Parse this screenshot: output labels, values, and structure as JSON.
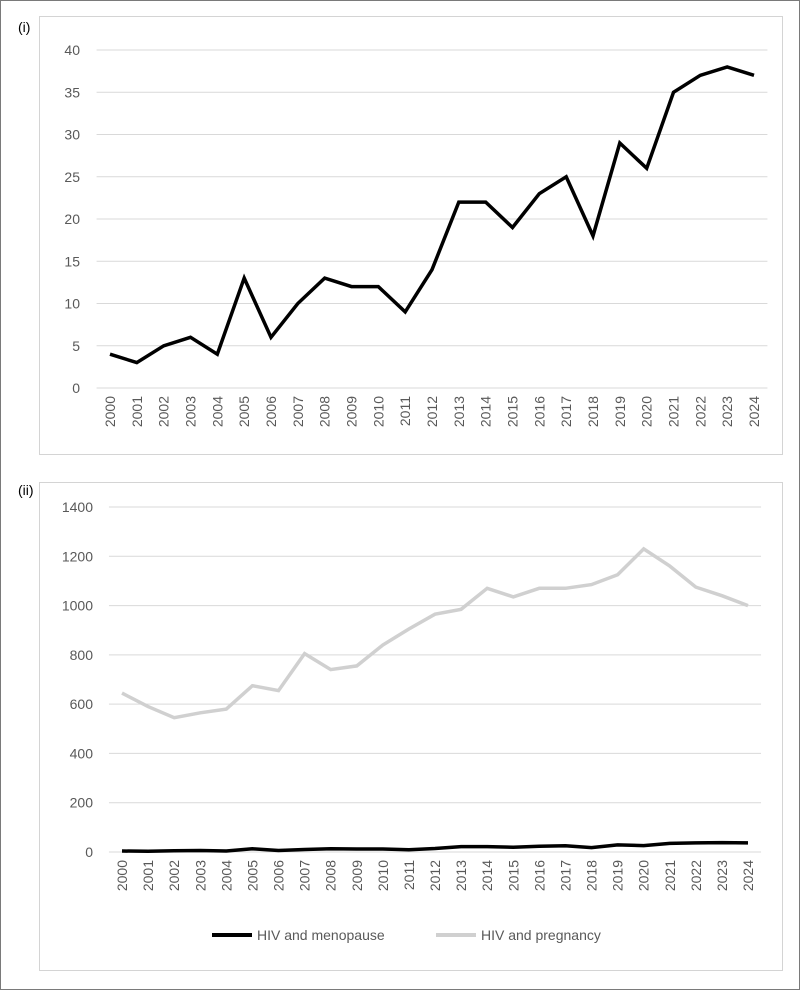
{
  "panels": [
    {
      "label": "(i)"
    },
    {
      "label": "(ii)"
    }
  ],
  "chart_data": [
    {
      "type": "line",
      "title": "",
      "xlabel": "",
      "ylabel": "",
      "categories": [
        "2000",
        "2001",
        "2002",
        "2003",
        "2004",
        "2005",
        "2006",
        "2007",
        "2008",
        "2009",
        "2010",
        "2011",
        "2012",
        "2013",
        "2014",
        "2015",
        "2016",
        "2017",
        "2018",
        "2019",
        "2020",
        "2021",
        "2022",
        "2023",
        "2024"
      ],
      "yticks": [
        0,
        5,
        10,
        15,
        20,
        25,
        30,
        35,
        40
      ],
      "ylim": [
        0,
        40
      ],
      "grid": true,
      "legend": "none",
      "series": [
        {
          "name": "",
          "color": "#000000",
          "values": [
            4,
            3,
            5,
            6,
            4,
            13,
            6,
            10,
            13,
            12,
            12,
            9,
            14,
            22,
            22,
            19,
            23,
            25,
            18,
            29,
            26,
            35,
            37,
            38,
            37
          ]
        }
      ]
    },
    {
      "type": "line",
      "title": "",
      "xlabel": "",
      "ylabel": "",
      "categories": [
        "2000",
        "2001",
        "2002",
        "2003",
        "2004",
        "2005",
        "2006",
        "2007",
        "2008",
        "2009",
        "2010",
        "2011",
        "2012",
        "2013",
        "2014",
        "2015",
        "2016",
        "2017",
        "2018",
        "2019",
        "2020",
        "2021",
        "2022",
        "2023",
        "2024"
      ],
      "yticks": [
        0,
        200,
        400,
        600,
        800,
        1000,
        1200,
        1400
      ],
      "ylim": [
        0,
        1400
      ],
      "grid": true,
      "legend": "bottom",
      "series": [
        {
          "name": "HIV and menopause",
          "color": "#000000",
          "values": [
            4,
            3,
            5,
            6,
            4,
            13,
            6,
            10,
            13,
            12,
            12,
            9,
            14,
            22,
            22,
            19,
            23,
            25,
            18,
            29,
            26,
            35,
            37,
            38,
            37
          ]
        },
        {
          "name": "HIV and pregnancy",
          "color": "#d0d0d0",
          "values": [
            645,
            590,
            545,
            565,
            580,
            675,
            655,
            805,
            740,
            755,
            840,
            905,
            965,
            985,
            1070,
            1035,
            1070,
            1070,
            1085,
            1125,
            1230,
            1160,
            1075,
            1040,
            1000
          ]
        }
      ]
    }
  ]
}
